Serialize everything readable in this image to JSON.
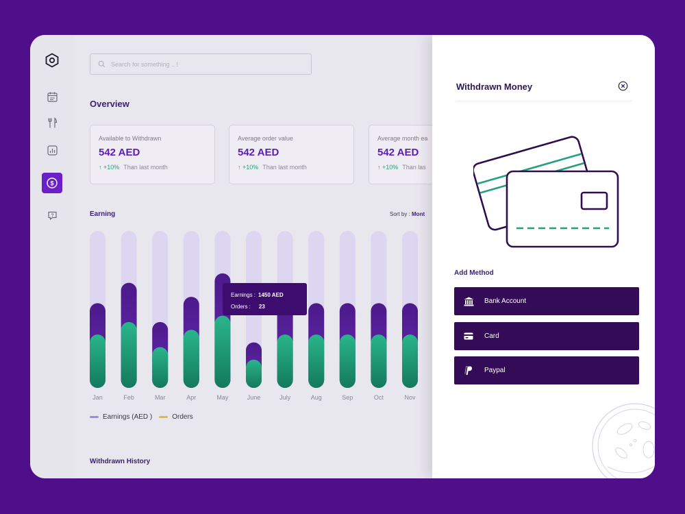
{
  "search": {
    "placeholder": "Search for something .. !"
  },
  "sidebar": {
    "items": [
      {
        "name": "logo",
        "icon": "hexagon-icon"
      },
      {
        "name": "orders",
        "icon": "calendar-icon"
      },
      {
        "name": "menu",
        "icon": "fork-knife-icon"
      },
      {
        "name": "reports",
        "icon": "chart-icon"
      },
      {
        "name": "earnings",
        "icon": "dollar-icon",
        "active": true
      },
      {
        "name": "help",
        "icon": "question-icon"
      }
    ]
  },
  "overview": {
    "title": "Overview",
    "cards": [
      {
        "label": "Available to Withdrawn",
        "value": "542 AED",
        "change": "↑ +10%",
        "comparison": "Than last month"
      },
      {
        "label": "Average order value",
        "value": "542 AED",
        "change": "↑ +10%",
        "comparison": "Than last month"
      },
      {
        "label": "Average month ea",
        "value": "542 AED",
        "change": "↑ +10%",
        "comparison": "Than las"
      }
    ]
  },
  "earning": {
    "title": "Earning",
    "sort_label": "Sort by : ",
    "sort_value": "Mont"
  },
  "chart_data": {
    "type": "bar",
    "categories": [
      "Jan",
      "Feb",
      "Mar",
      "Apr",
      "May",
      "June",
      "July",
      "Aug",
      "Sep",
      "Oct",
      "Nov"
    ],
    "series": [
      {
        "name": "Earnings (AED )",
        "values": [
          0.54,
          0.67,
          0.42,
          0.58,
          0.73,
          0.29,
          0.54,
          0.54,
          0.54,
          0.54,
          0.54
        ],
        "color": "#4a1888"
      },
      {
        "name": "Orders",
        "values": [
          0.34,
          0.42,
          0.26,
          0.37,
          0.46,
          0.18,
          0.34,
          0.34,
          0.34,
          0.34,
          0.34
        ],
        "color": "#23a07c"
      }
    ],
    "ylim": [
      0,
      1
    ],
    "legend": [
      {
        "label": "Earnings (AED )",
        "color": "#9a8ce6"
      },
      {
        "label": "Orders",
        "color": "#e9b54a"
      }
    ],
    "tooltip": {
      "earnings_label": "Earnings :",
      "earnings_value": "1450 AED",
      "orders_label": "Orders :",
      "orders_value": "23"
    }
  },
  "history": {
    "title": "Withdrawn History"
  },
  "panel": {
    "title": "Withdrawn Money",
    "add_method_label": "Add Method",
    "methods": [
      {
        "label": "Bank Account",
        "icon": "bank-icon"
      },
      {
        "label": "Card",
        "icon": "card-icon"
      },
      {
        "label": "Paypal",
        "icon": "paypal-icon"
      }
    ]
  },
  "colors": {
    "background": "#4f0f8a",
    "accent": "#6a1fc9",
    "earnings": "#4a1888",
    "orders": "#23a07c",
    "bar_track": "#dcd6f0",
    "method_button": "#340b57"
  }
}
